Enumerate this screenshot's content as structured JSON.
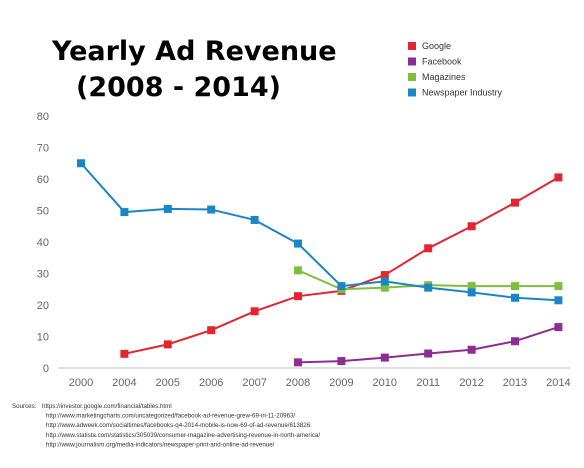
{
  "chart_data": {
    "type": "line",
    "title_line1": "Yearly Ad Revenue",
    "title_line2": "(2008 - 2014)",
    "x": [
      "2000",
      "2004",
      "2005",
      "2006",
      "2007",
      "2008",
      "2009",
      "2010",
      "2011",
      "2012",
      "2013",
      "2014"
    ],
    "ylim": [
      0,
      80
    ],
    "yticks": [
      0,
      10,
      20,
      30,
      40,
      50,
      60,
      70,
      80
    ],
    "grid": false,
    "legend_position": "top-right",
    "series": [
      {
        "name": "Google",
        "color": "#e3262e",
        "values": [
          null,
          4.5,
          7.5,
          12,
          18,
          22.8,
          24.5,
          29.5,
          38,
          45,
          52.5,
          60.5
        ]
      },
      {
        "name": "Facebook",
        "color": "#8e2c91",
        "values": [
          null,
          null,
          null,
          null,
          null,
          1.8,
          2.2,
          3.3,
          4.6,
          5.8,
          8.5,
          13
        ]
      },
      {
        "name": "Magazines",
        "color": "#7fbf3f",
        "values": [
          null,
          null,
          null,
          null,
          null,
          31,
          25,
          25.5,
          26.3,
          26,
          26,
          26
        ]
      },
      {
        "name": "Newspaper Industry",
        "color": "#1a86c6",
        "values": [
          65,
          49.5,
          50.5,
          50.3,
          47,
          39.5,
          26,
          27.5,
          25.5,
          24,
          22.3,
          21.5
        ]
      }
    ]
  },
  "sources": {
    "label": "Sources:",
    "lines": [
      "https://investor.google.com/financial/tables.html",
      "http://www.marketingcharts.com/uncategorized/facebook-ad-revenue-grew-69-in-11-20963/",
      "http://www.adweek.com/socialtimes/facebooks-q4-2014-mobile-is-now-69-of-ad-revenue/613826",
      "http://www.statista.com/statistics/305039/consumer-magazine-advertising-revenue-in-north-america/",
      "http://www.journalism.org/media-indicators/newspaper-print-and-online-ad-revenue/"
    ]
  }
}
